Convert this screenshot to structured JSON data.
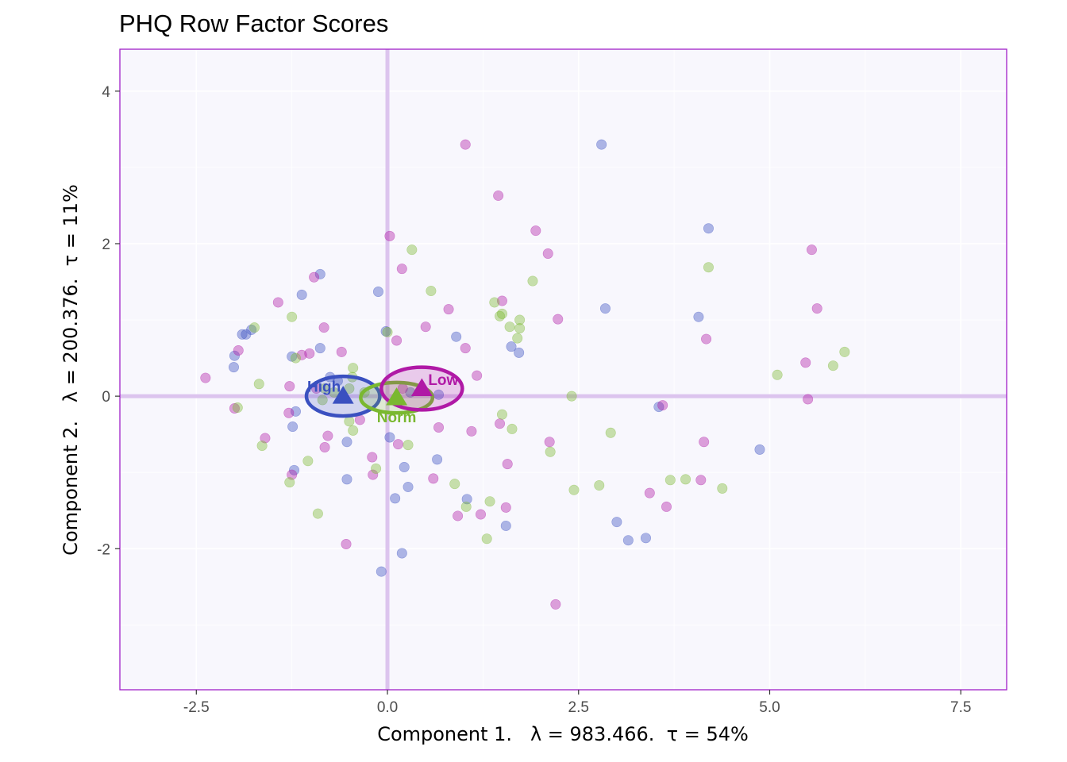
{
  "chart_data": {
    "type": "scatter",
    "title": "PHQ Row Factor Scores",
    "xlabel": "Component 1.   λ = 983.466.  τ = 54%",
    "ylabel": "Component 2.   λ = 200.376.  τ = 11%",
    "xlim": [
      -3.5,
      8.1
    ],
    "ylim": [
      -3.85,
      4.55
    ],
    "xticks": [
      -2.5,
      0,
      2.5,
      5,
      7.5
    ],
    "xtick_labels": [
      "-2.5",
      "0.0",
      "2.5",
      "5.0",
      "7.5"
    ],
    "yticks": [
      -2,
      0,
      2,
      4
    ],
    "ytick_labels": [
      "-2",
      "0",
      "2",
      "4"
    ],
    "grid": true,
    "legend": "none",
    "colors": {
      "panel_background": "#f8f7fd",
      "panel_border": "#a020c8",
      "grid": "#ffffff",
      "origin_lines": "#dcc4ee",
      "High": "#3a50c0",
      "Low": "#b019a6",
      "Norm": "#7ab830"
    },
    "series": [
      {
        "name": "High",
        "color": "#3a50c0",
        "points": [
          [
            2.8,
            3.3
          ],
          [
            4.2,
            2.2
          ],
          [
            -0.88,
            1.6
          ],
          [
            -0.12,
            1.37
          ],
          [
            -1.12,
            1.33
          ],
          [
            2.85,
            1.15
          ],
          [
            4.07,
            1.04
          ],
          [
            -1.78,
            0.87
          ],
          [
            -1.85,
            0.81
          ],
          [
            -1.9,
            0.81
          ],
          [
            -0.88,
            0.63
          ],
          [
            0.9,
            0.78
          ],
          [
            1.62,
            0.65
          ],
          [
            1.72,
            0.57
          ],
          [
            -1.25,
            0.52
          ],
          [
            -2.0,
            0.53
          ],
          [
            -2.01,
            0.38
          ],
          [
            -0.75,
            0.25
          ],
          [
            -0.65,
            0.2
          ],
          [
            0.3,
            0.05
          ],
          [
            0.67,
            0.02
          ],
          [
            -0.02,
            0.85
          ],
          [
            3.55,
            -0.14
          ],
          [
            -1.2,
            -0.2
          ],
          [
            -1.24,
            -0.4
          ],
          [
            -0.53,
            -0.6
          ],
          [
            0.03,
            -0.54
          ],
          [
            0.65,
            -0.83
          ],
          [
            0.22,
            -0.93
          ],
          [
            -1.22,
            -0.97
          ],
          [
            -0.53,
            -1.09
          ],
          [
            0.27,
            -1.19
          ],
          [
            0.1,
            -1.34
          ],
          [
            1.04,
            -1.35
          ],
          [
            1.55,
            -1.7
          ],
          [
            3.0,
            -1.65
          ],
          [
            3.15,
            -1.89
          ],
          [
            3.38,
            -1.86
          ],
          [
            0.19,
            -2.06
          ],
          [
            -0.08,
            -2.3
          ],
          [
            4.87,
            -0.7
          ]
        ]
      },
      {
        "name": "Low",
        "color": "#b019a6",
        "points": [
          [
            1.02,
            3.3
          ],
          [
            1.45,
            2.63
          ],
          [
            1.94,
            2.17
          ],
          [
            0.03,
            2.1
          ],
          [
            2.1,
            1.87
          ],
          [
            0.19,
            1.67
          ],
          [
            -0.96,
            1.56
          ],
          [
            -1.43,
            1.23
          ],
          [
            1.5,
            1.25
          ],
          [
            0.8,
            1.14
          ],
          [
            2.23,
            1.01
          ],
          [
            -0.83,
            0.9
          ],
          [
            0.5,
            0.91
          ],
          [
            -0.6,
            0.58
          ],
          [
            0.12,
            0.73
          ],
          [
            1.02,
            0.63
          ],
          [
            -1.95,
            0.6
          ],
          [
            -1.02,
            0.56
          ],
          [
            -1.12,
            0.54
          ],
          [
            1.17,
            0.27
          ],
          [
            -0.93,
            0.1
          ],
          [
            -1.28,
            0.13
          ],
          [
            -1.29,
            -0.22
          ],
          [
            -0.36,
            -0.31
          ],
          [
            0.67,
            -0.41
          ],
          [
            1.47,
            -0.36
          ],
          [
            1.1,
            -0.46
          ],
          [
            -0.78,
            -0.52
          ],
          [
            -0.82,
            -0.67
          ],
          [
            -0.2,
            -0.8
          ],
          [
            0.14,
            -0.63
          ],
          [
            1.57,
            -0.89
          ],
          [
            2.12,
            -0.6
          ],
          [
            -0.19,
            -1.03
          ],
          [
            0.6,
            -1.08
          ],
          [
            4.1,
            -1.1
          ],
          [
            3.43,
            -1.27
          ],
          [
            1.55,
            -1.46
          ],
          [
            3.65,
            -1.45
          ],
          [
            0.92,
            -1.57
          ],
          [
            1.22,
            -1.55
          ],
          [
            -0.54,
            -1.94
          ],
          [
            2.2,
            -2.73
          ],
          [
            3.6,
            -0.12
          ],
          [
            4.14,
            -0.6
          ],
          [
            4.17,
            0.75
          ],
          [
            5.47,
            0.44
          ],
          [
            5.55,
            1.92
          ],
          [
            5.62,
            1.15
          ],
          [
            5.5,
            -0.04
          ],
          [
            -2.38,
            0.24
          ],
          [
            -1.6,
            -0.55
          ],
          [
            -2.0,
            -0.16
          ],
          [
            -1.25,
            -1.03
          ],
          [
            0.2,
            0.1
          ]
        ]
      },
      {
        "name": "Norm",
        "color": "#7ab830",
        "points": [
          [
            0.32,
            1.92
          ],
          [
            1.9,
            1.51
          ],
          [
            4.2,
            1.69
          ],
          [
            0.57,
            1.38
          ],
          [
            1.4,
            1.23
          ],
          [
            1.5,
            1.08
          ],
          [
            1.47,
            1.05
          ],
          [
            1.73,
            1.0
          ],
          [
            1.6,
            0.91
          ],
          [
            1.73,
            0.89
          ],
          [
            1.7,
            0.76
          ],
          [
            -1.74,
            0.9
          ],
          [
            -1.25,
            1.04
          ],
          [
            -1.68,
            0.16
          ],
          [
            -1.2,
            0.5
          ],
          [
            -0.45,
            0.37
          ],
          [
            -0.46,
            0.25
          ],
          [
            -0.5,
            0.1
          ],
          [
            -0.82,
            0.1
          ],
          [
            -0.85,
            -0.05
          ],
          [
            -0.5,
            -0.33
          ],
          [
            -0.45,
            -0.45
          ],
          [
            0.27,
            -0.64
          ],
          [
            1.5,
            -0.24
          ],
          [
            1.63,
            -0.43
          ],
          [
            2.13,
            -0.73
          ],
          [
            2.41,
            0.0
          ],
          [
            2.92,
            -0.48
          ],
          [
            -1.64,
            -0.65
          ],
          [
            -1.04,
            -0.85
          ],
          [
            -0.15,
            -0.95
          ],
          [
            0.88,
            -1.15
          ],
          [
            1.34,
            -1.38
          ],
          [
            1.03,
            -1.45
          ],
          [
            1.3,
            -1.87
          ],
          [
            -0.91,
            -1.54
          ],
          [
            -1.28,
            -1.13
          ],
          [
            2.44,
            -1.23
          ],
          [
            2.77,
            -1.17
          ],
          [
            3.7,
            -1.1
          ],
          [
            3.9,
            -1.09
          ],
          [
            4.38,
            -1.21
          ],
          [
            5.1,
            0.28
          ],
          [
            5.83,
            0.4
          ],
          [
            5.98,
            0.58
          ],
          [
            0.0,
            0.84
          ],
          [
            -1.96,
            -0.15
          ],
          [
            -0.7,
            0.05
          ],
          [
            -0.3,
            0.05
          ]
        ]
      }
    ],
    "group_means": [
      {
        "name": "High",
        "x": -0.58,
        "y": 0.0,
        "ci_rx": 0.48,
        "ci_ry": 0.26,
        "label_dx": -0.25,
        "label_dy": 0.13
      },
      {
        "name": "Norm",
        "x": 0.12,
        "y": -0.02,
        "ci_rx": 0.47,
        "ci_ry": 0.2,
        "label_dx": 0.0,
        "label_dy": -0.25
      },
      {
        "name": "Low",
        "x": 0.45,
        "y": 0.1,
        "ci_rx": 0.53,
        "ci_ry": 0.28,
        "label_dx": 0.28,
        "label_dy": 0.12
      }
    ]
  }
}
